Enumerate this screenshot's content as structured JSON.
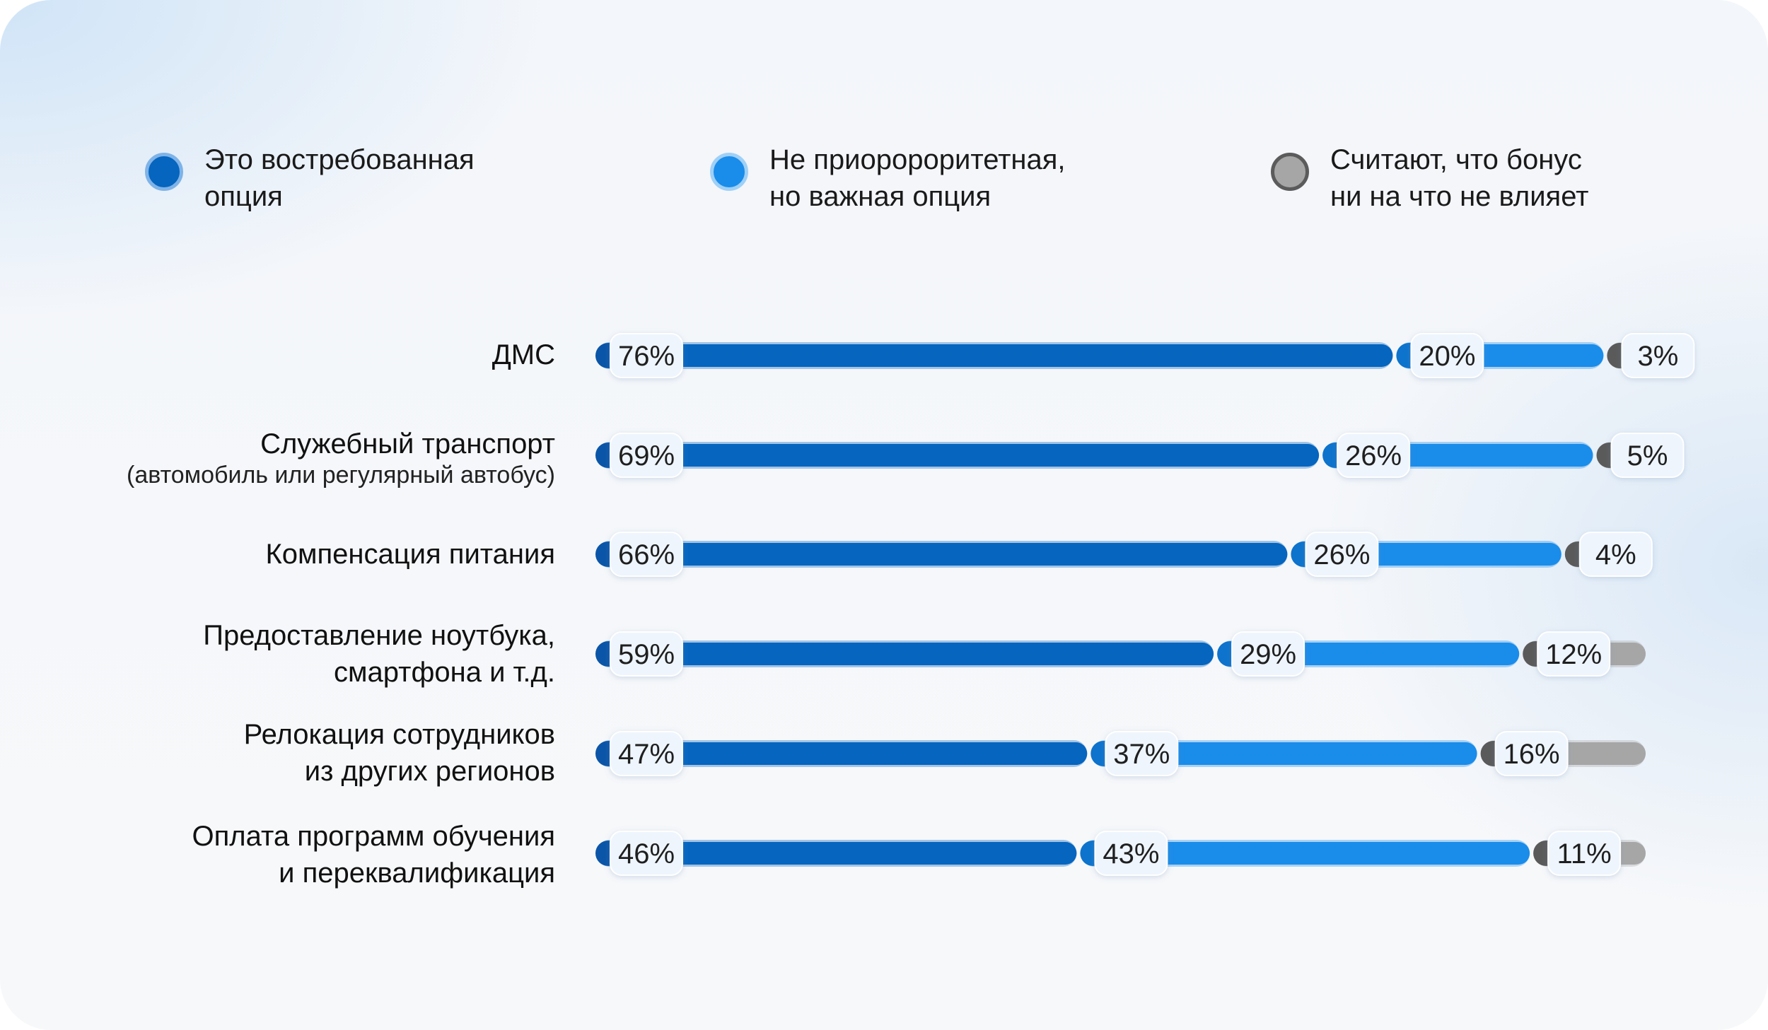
{
  "colors": {
    "demanded": "#0565bf",
    "important": "#1a8cea",
    "no_effect": "#a6a6a6"
  },
  "legend": [
    {
      "key": "demanded",
      "label": "Это востребованная\nопция",
      "icon": "dark-blue-circle"
    },
    {
      "key": "important",
      "label": "Не приоророритетная,\nно важная опция",
      "icon": "blue-circle"
    },
    {
      "key": "no_effect",
      "label": "Считают, что бонус\nни на что не влияет",
      "icon": "gray-circle"
    }
  ],
  "chart_data": {
    "type": "bar",
    "orientation": "horizontal",
    "stacked": true,
    "unit": "%",
    "categories": [
      "ДМС",
      "Служебный транспорт ",
      "Компенсация питания",
      "Предоставление ноутбука,\nсмартфона и т.д.",
      "Релокация сотрудников \nиз других регионов",
      "Оплата программ обучения\nи переквалификация"
    ],
    "category_notes": [
      "",
      "(автомобиль или регулярный автобус)",
      "",
      "",
      "",
      ""
    ],
    "series": [
      {
        "name": "Это востребованная опция",
        "values": [
          76,
          69,
          66,
          59,
          47,
          46
        ]
      },
      {
        "name": "Не приоророритетная, но важная опция",
        "values": [
          20,
          26,
          26,
          29,
          37,
          43
        ]
      },
      {
        "name": "Считают, что бонус ни на что не влияет",
        "values": [
          3,
          5,
          4,
          12,
          16,
          11
        ]
      }
    ],
    "labels": [
      [
        "76%",
        "20%",
        "3%"
      ],
      [
        "69%",
        "26%",
        "5%"
      ],
      [
        "66%",
        "26%",
        "4%"
      ],
      [
        "59%",
        "29%",
        "12%"
      ],
      [
        "47%",
        "37%",
        "16%"
      ],
      [
        "46%",
        "43%",
        "11%"
      ]
    ],
    "xlim": [
      0,
      100
    ],
    "grid": false,
    "legend_position": "top"
  }
}
